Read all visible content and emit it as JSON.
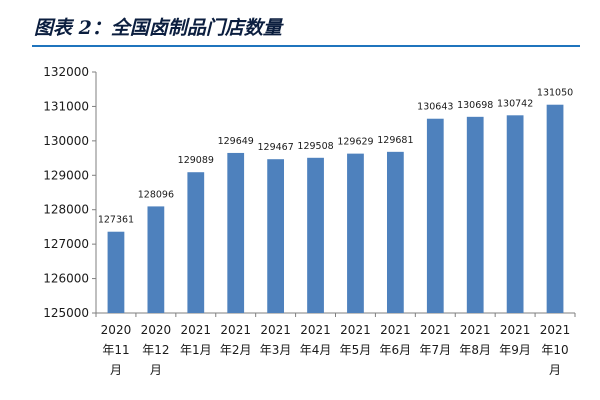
{
  "figure": {
    "title": "图表 2：全国卤制品门店数量"
  },
  "chart_data": {
    "type": "bar",
    "title": "",
    "xlabel": "",
    "ylabel": "",
    "categories": [
      [
        "2020",
        "年11",
        "月"
      ],
      [
        "2020",
        "年12",
        "月"
      ],
      [
        "2021",
        "年1月"
      ],
      [
        "2021",
        "年2月"
      ],
      [
        "2021",
        "年3月"
      ],
      [
        "2021",
        "年4月"
      ],
      [
        "2021",
        "年5月"
      ],
      [
        "2021",
        "年6月"
      ],
      [
        "2021",
        "年7月"
      ],
      [
        "2021",
        "年8月"
      ],
      [
        "2021",
        "年9月"
      ],
      [
        "2021",
        "年10",
        "月"
      ]
    ],
    "values": [
      127361,
      128096,
      129089,
      129649,
      129467,
      129508,
      129629,
      129681,
      130643,
      130698,
      130742,
      131050
    ],
    "data_labels": [
      "127361",
      "128096",
      "129089",
      "129649",
      "129467",
      "129508",
      "129629",
      "129681",
      "130643",
      "130698",
      "130742",
      "131050"
    ],
    "ylim": [
      125000,
      132000
    ],
    "yticks": [
      125000,
      126000,
      127000,
      128000,
      129000,
      130000,
      131000,
      132000
    ],
    "ytick_labels": [
      "125000",
      "126000",
      "127000",
      "128000",
      "129000",
      "130000",
      "131000",
      "132000"
    ],
    "bar_color": "#4e81bd",
    "grid": false,
    "legend": "none"
  }
}
